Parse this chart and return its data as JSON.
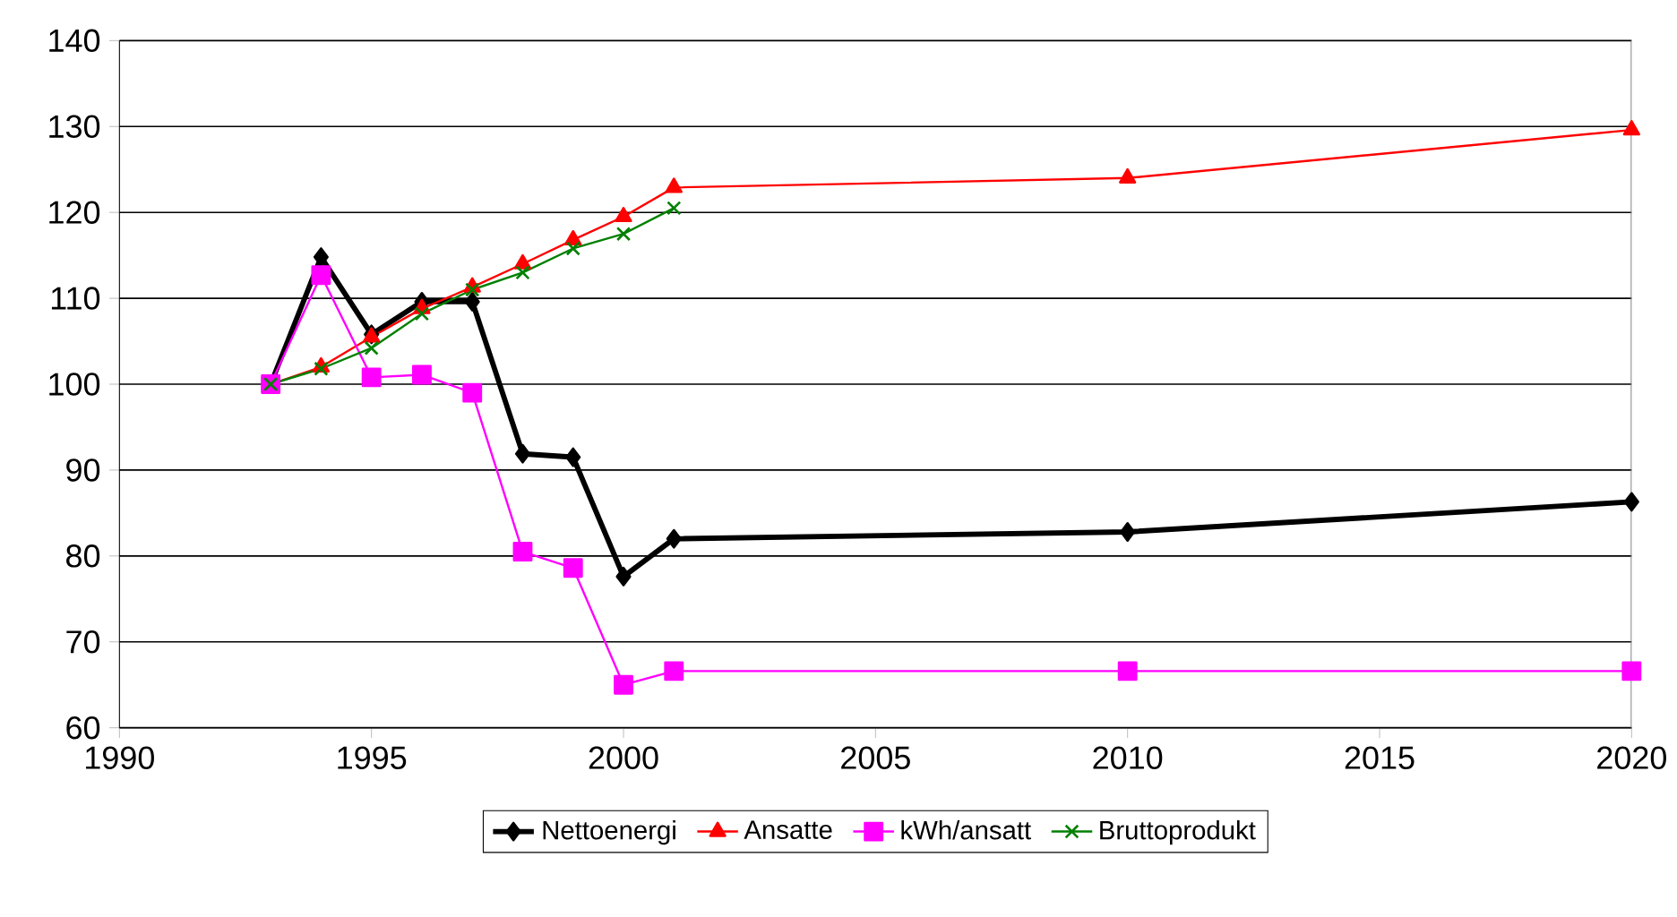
{
  "chart_data": {
    "type": "line",
    "xlim": [
      1990,
      2020
    ],
    "xticks": [
      1990,
      1995,
      2000,
      2005,
      2010,
      2015,
      2020
    ],
    "ylim": [
      60,
      140
    ],
    "yticks": [
      60,
      70,
      80,
      90,
      100,
      110,
      120,
      130,
      140
    ],
    "grid": "y",
    "legend": "bottom",
    "line_style": "solid",
    "series": [
      {
        "name": "Nettoenergi",
        "color": "#000000",
        "marker": "diamond",
        "x": [
          1993,
          1994,
          1995,
          1996,
          1997,
          1998,
          1999,
          2000,
          2001,
          2010,
          2020
        ],
        "values": [
          100,
          114.8,
          105.8,
          109.6,
          109.6,
          91.9,
          91.5,
          77.6,
          82,
          82.8,
          86.3
        ]
      },
      {
        "name": "Ansatte",
        "color": "#ff0000",
        "marker": "triangle",
        "x": [
          1993,
          1994,
          1995,
          1996,
          1997,
          1998,
          1999,
          2000,
          2001,
          2010,
          2020
        ],
        "values": [
          100,
          102,
          105.5,
          108.8,
          111.3,
          114,
          116.8,
          119.5,
          122.9,
          124,
          129.6
        ]
      },
      {
        "name": "kWh/ansatt",
        "color": "#ff00ff",
        "marker": "square",
        "x": [
          1993,
          1994,
          1995,
          1996,
          1997,
          1998,
          1999,
          2000,
          2001,
          2010,
          2020
        ],
        "values": [
          100,
          112.7,
          100.8,
          101.1,
          99,
          80.5,
          78.6,
          65,
          66.6,
          66.6,
          66.6
        ]
      },
      {
        "name": "Bruttoprodukt",
        "color": "#008000",
        "marker": "cross",
        "x": [
          1993,
          1994,
          1995,
          1996,
          1997,
          1998,
          1999,
          2000,
          2001
        ],
        "values": [
          100,
          101.8,
          104.2,
          108.2,
          111,
          113,
          115.8,
          117.5,
          120.5
        ]
      }
    ]
  }
}
